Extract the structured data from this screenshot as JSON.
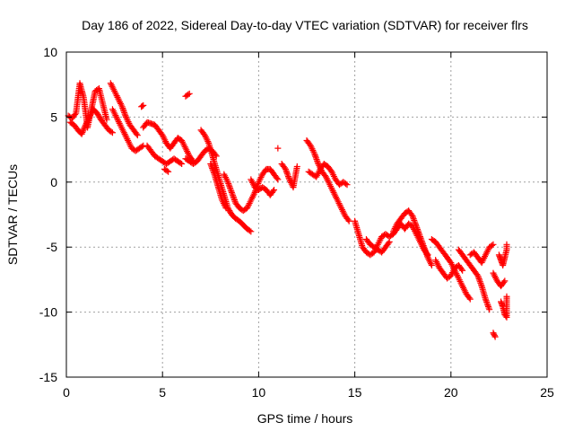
{
  "chart_data": {
    "type": "scatter",
    "title": "Day 186 of 2022, Sidereal Day-to-day VTEC variation (SDTVAR) for receiver flrs",
    "xlabel": "GPS time / hours",
    "ylabel": "SDTVAR / TECUs",
    "xlim": [
      0,
      25
    ],
    "ylim": [
      -15,
      10
    ],
    "xticks": [
      0,
      5,
      10,
      15,
      20,
      25
    ],
    "yticks": [
      -15,
      -10,
      -5,
      0,
      5,
      10
    ],
    "grid": true,
    "marker": "+",
    "color": "#ff0000",
    "series": [
      {
        "name": "SDTVAR",
        "tracks": [
          [
            [
              0.1,
              5.1
            ],
            [
              0.3,
              4.9
            ],
            [
              0.5,
              5.3
            ],
            [
              0.7,
              7.6
            ],
            [
              0.9,
              6.5
            ],
            [
              1.1,
              4.2
            ],
            [
              1.3,
              5.6
            ],
            [
              1.5,
              7.0
            ],
            [
              1.7,
              7.2
            ],
            [
              1.9,
              6.0
            ],
            [
              2.1,
              4.8
            ]
          ],
          [
            [
              0.2,
              4.6
            ],
            [
              0.4,
              4.4
            ],
            [
              0.6,
              4.0
            ],
            [
              0.8,
              3.7
            ],
            [
              1.0,
              4.4
            ],
            [
              1.2,
              5.0
            ],
            [
              1.4,
              5.6
            ],
            [
              1.6,
              5.3
            ],
            [
              1.8,
              4.8
            ],
            [
              2.0,
              4.4
            ],
            [
              2.2,
              4.0
            ],
            [
              2.4,
              3.8
            ]
          ],
          [
            [
              2.3,
              7.6
            ],
            [
              2.5,
              7.0
            ],
            [
              2.7,
              6.4
            ],
            [
              2.9,
              5.8
            ],
            [
              3.1,
              5.0
            ],
            [
              3.3,
              4.4
            ],
            [
              3.5,
              4.0
            ],
            [
              3.7,
              3.6
            ]
          ],
          [
            [
              2.4,
              5.6
            ],
            [
              2.6,
              5.0
            ],
            [
              2.8,
              4.4
            ],
            [
              3.0,
              3.8
            ],
            [
              3.2,
              3.2
            ],
            [
              3.4,
              2.6
            ],
            [
              3.6,
              2.4
            ],
            [
              3.8,
              2.6
            ],
            [
              4.0,
              2.8
            ]
          ],
          [
            [
              3.9,
              5.8
            ],
            [
              4.0,
              5.9
            ]
          ],
          [
            [
              4.0,
              4.2
            ],
            [
              4.2,
              4.6
            ],
            [
              4.4,
              4.5
            ],
            [
              4.6,
              4.4
            ],
            [
              4.8,
              4.0
            ],
            [
              5.0,
              3.6
            ],
            [
              5.2,
              3.0
            ],
            [
              5.4,
              2.6
            ],
            [
              5.6,
              3.0
            ],
            [
              5.8,
              3.4
            ],
            [
              6.0,
              3.2
            ],
            [
              6.2,
              2.6
            ],
            [
              6.4,
              2.0
            ],
            [
              6.6,
              1.6
            ]
          ],
          [
            [
              4.2,
              2.8
            ],
            [
              4.4,
              2.4
            ],
            [
              4.6,
              2.0
            ],
            [
              4.8,
              1.8
            ],
            [
              5.0,
              1.6
            ],
            [
              5.2,
              1.4
            ],
            [
              5.4,
              1.6
            ],
            [
              5.6,
              1.8
            ],
            [
              5.8,
              1.6
            ],
            [
              6.0,
              1.4
            ]
          ],
          [
            [
              5.1,
              1.0
            ],
            [
              5.3,
              0.8
            ]
          ],
          [
            [
              6.2,
              6.6
            ],
            [
              6.4,
              6.8
            ]
          ],
          [
            [
              6.2,
              1.8
            ],
            [
              6.4,
              1.6
            ],
            [
              6.6,
              1.4
            ],
            [
              6.8,
              1.6
            ],
            [
              7.0,
              2.0
            ],
            [
              7.2,
              2.4
            ],
            [
              7.4,
              2.6
            ],
            [
              7.6,
              2.4
            ],
            [
              7.8,
              2.0
            ]
          ],
          [
            [
              7.0,
              4.0
            ],
            [
              7.2,
              3.6
            ],
            [
              7.4,
              3.0
            ],
            [
              7.6,
              2.0
            ],
            [
              7.8,
              1.0
            ],
            [
              8.0,
              0.0
            ],
            [
              8.2,
              -1.0
            ],
            [
              8.4,
              -2.0
            ],
            [
              8.6,
              -2.5
            ],
            [
              8.8,
              -2.8
            ],
            [
              9.0,
              -3.0
            ],
            [
              9.2,
              -3.3
            ],
            [
              9.4,
              -3.6
            ],
            [
              9.6,
              -3.8
            ]
          ],
          [
            [
              7.5,
              1.4
            ],
            [
              7.7,
              0.6
            ],
            [
              7.9,
              -0.4
            ],
            [
              8.1,
              -1.4
            ],
            [
              8.3,
              -2.0
            ]
          ],
          [
            [
              8.2,
              0.6
            ],
            [
              8.4,
              0.0
            ],
            [
              8.6,
              -0.8
            ],
            [
              8.8,
              -1.6
            ],
            [
              9.0,
              -2.0
            ],
            [
              9.2,
              -2.2
            ],
            [
              9.4,
              -2.0
            ],
            [
              9.6,
              -1.4
            ],
            [
              9.8,
              -0.8
            ],
            [
              10.0,
              0.0
            ],
            [
              10.2,
              0.6
            ],
            [
              10.4,
              1.0
            ],
            [
              10.6,
              1.0
            ],
            [
              10.8,
              0.6
            ],
            [
              11.0,
              0.2
            ]
          ],
          [
            [
              9.6,
              0.2
            ],
            [
              9.8,
              -0.4
            ],
            [
              10.0,
              -0.6
            ],
            [
              10.2,
              -0.4
            ],
            [
              10.4,
              -0.6
            ],
            [
              10.6,
              -1.0
            ],
            [
              10.8,
              -0.6
            ]
          ],
          [
            [
              11.0,
              2.6
            ]
          ],
          [
            [
              11.2,
              1.4
            ],
            [
              11.4,
              1.0
            ],
            [
              11.6,
              0.2
            ],
            [
              11.8,
              -0.4
            ],
            [
              12.0,
              1.2
            ]
          ],
          [
            [
              12.5,
              3.2
            ],
            [
              12.7,
              2.8
            ],
            [
              12.9,
              2.2
            ],
            [
              13.1,
              1.4
            ],
            [
              13.3,
              0.8
            ],
            [
              13.5,
              0.4
            ],
            [
              13.7,
              -0.2
            ],
            [
              13.9,
              -0.8
            ],
            [
              14.1,
              -1.4
            ],
            [
              14.3,
              -2.0
            ],
            [
              14.5,
              -2.6
            ],
            [
              14.7,
              -3.0
            ]
          ],
          [
            [
              12.6,
              0.8
            ],
            [
              12.8,
              0.6
            ],
            [
              13.0,
              0.4
            ],
            [
              13.2,
              1.0
            ],
            [
              13.4,
              1.4
            ],
            [
              13.6,
              1.2
            ],
            [
              13.8,
              0.8
            ],
            [
              14.0,
              0.2
            ],
            [
              14.2,
              -0.2
            ],
            [
              14.4,
              0.0
            ],
            [
              14.6,
              -0.2
            ]
          ],
          [
            [
              15.0,
              -3.0
            ],
            [
              15.2,
              -4.0
            ],
            [
              15.4,
              -5.0
            ],
            [
              15.6,
              -5.4
            ],
            [
              15.8,
              -5.6
            ],
            [
              16.0,
              -5.4
            ],
            [
              16.2,
              -4.8
            ],
            [
              16.4,
              -4.2
            ],
            [
              16.6,
              -4.0
            ],
            [
              16.8,
              -4.2
            ],
            [
              17.0,
              -4.0
            ],
            [
              17.2,
              -3.6
            ],
            [
              17.4,
              -3.2
            ],
            [
              17.6,
              -3.6
            ]
          ],
          [
            [
              15.6,
              -4.4
            ],
            [
              15.8,
              -4.8
            ],
            [
              16.0,
              -5.0
            ],
            [
              16.2,
              -5.2
            ],
            [
              16.4,
              -5.4
            ],
            [
              16.6,
              -5.0
            ],
            [
              16.8,
              -4.6
            ]
          ],
          [
            [
              17.0,
              -3.8
            ],
            [
              17.2,
              -3.2
            ],
            [
              17.4,
              -2.8
            ],
            [
              17.6,
              -2.4
            ],
            [
              17.8,
              -2.2
            ],
            [
              18.0,
              -2.6
            ],
            [
              18.2,
              -3.4
            ],
            [
              18.4,
              -4.2
            ],
            [
              18.6,
              -5.0
            ],
            [
              18.8,
              -5.8
            ],
            [
              19.0,
              -6.4
            ]
          ],
          [
            [
              17.6,
              -3.6
            ],
            [
              17.8,
              -3.2
            ],
            [
              18.0,
              -3.4
            ],
            [
              18.2,
              -4.0
            ],
            [
              18.4,
              -4.6
            ],
            [
              18.6,
              -5.2
            ],
            [
              18.8,
              -5.6
            ]
          ],
          [
            [
              19.0,
              -4.4
            ],
            [
              19.2,
              -4.6
            ],
            [
              19.4,
              -5.0
            ],
            [
              19.6,
              -5.4
            ],
            [
              19.8,
              -5.8
            ],
            [
              20.0,
              -6.2
            ],
            [
              20.2,
              -6.8
            ],
            [
              20.4,
              -7.4
            ],
            [
              20.6,
              -8.0
            ],
            [
              20.8,
              -8.6
            ],
            [
              21.0,
              -9.0
            ]
          ],
          [
            [
              19.2,
              -6.0
            ],
            [
              19.4,
              -6.6
            ],
            [
              19.6,
              -7.0
            ],
            [
              19.8,
              -7.4
            ],
            [
              20.0,
              -7.2
            ],
            [
              20.2,
              -6.6
            ],
            [
              20.4,
              -6.4
            ],
            [
              20.6,
              -6.8
            ]
          ],
          [
            [
              20.4,
              -5.2
            ],
            [
              20.6,
              -5.6
            ],
            [
              20.8,
              -6.0
            ],
            [
              21.0,
              -6.4
            ],
            [
              21.2,
              -6.8
            ],
            [
              21.4,
              -7.2
            ],
            [
              21.6,
              -8.0
            ],
            [
              21.8,
              -9.0
            ],
            [
              22.0,
              -9.8
            ]
          ],
          [
            [
              21.0,
              -5.6
            ],
            [
              21.2,
              -5.4
            ],
            [
              21.4,
              -5.8
            ],
            [
              21.6,
              -6.2
            ],
            [
              21.8,
              -5.6
            ],
            [
              22.0,
              -5.0
            ],
            [
              22.2,
              -4.8
            ]
          ],
          [
            [
              22.2,
              -7.0
            ],
            [
              22.4,
              -7.6
            ],
            [
              22.6,
              -8.0
            ],
            [
              22.8,
              -7.6
            ]
          ],
          [
            [
              22.2,
              -11.6
            ],
            [
              22.3,
              -11.9
            ]
          ],
          [
            [
              22.6,
              -9.2
            ],
            [
              22.7,
              -9.6
            ],
            [
              22.8,
              -10.2
            ],
            [
              22.9,
              -10.4
            ],
            [
              22.9,
              -8.8
            ]
          ],
          [
            [
              22.5,
              -5.6
            ],
            [
              22.6,
              -6.0
            ],
            [
              22.7,
              -6.4
            ],
            [
              22.8,
              -5.8
            ],
            [
              22.9,
              -5.2
            ],
            [
              22.9,
              -4.8
            ]
          ]
        ]
      }
    ]
  }
}
